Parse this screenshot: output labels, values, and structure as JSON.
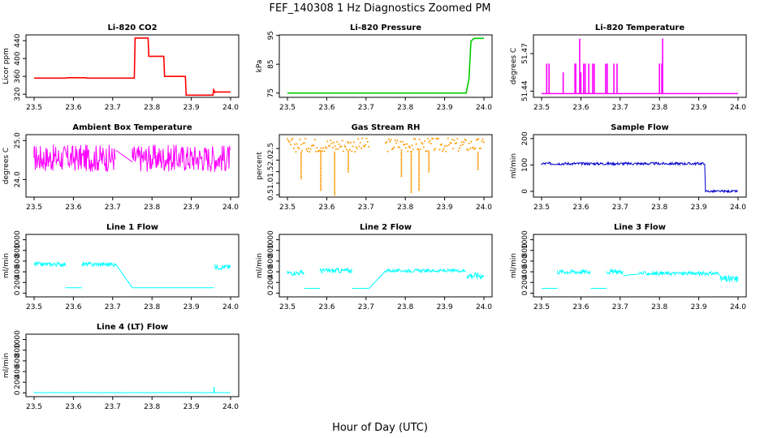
{
  "figure": {
    "title": "FEF_140308  1 Hz Diagnostics Zoomed PM",
    "xlabel": "Hour of Day (UTC)"
  },
  "chart_data": [
    {
      "type": "line",
      "title": "Li-820 CO2",
      "ylabel": "Licor ppm",
      "color": "#ff0000",
      "xlim": [
        23.5,
        24.0
      ],
      "ylim": [
        313,
        453
      ],
      "xticks": [
        "23.5",
        "23.6",
        "23.7",
        "23.8",
        "23.9",
        "24.0"
      ],
      "yticks": [
        {
          "v": 320,
          "label": "320"
        },
        {
          "v": 360,
          "label": "360"
        },
        {
          "v": 400,
          "label": "400"
        },
        {
          "v": 440,
          "label": "440"
        }
      ],
      "series": [
        {
          "name": "CO2",
          "x": [
            23.5,
            23.58,
            23.585,
            23.63,
            23.635,
            23.755,
            23.757,
            23.79,
            23.792,
            23.83,
            23.832,
            23.885,
            23.887,
            23.955,
            23.957,
            23.96,
            23.962,
            24.0
          ],
          "y": [
            356,
            356,
            357,
            357,
            356,
            356,
            446,
            446,
            405,
            405,
            360,
            360,
            318,
            318,
            330,
            324,
            325,
            325
          ]
        }
      ]
    },
    {
      "type": "line",
      "title": "Li-820 Pressure",
      "ylabel": "kPa",
      "color": "#00cc00",
      "xlim": [
        23.5,
        24.0
      ],
      "ylim": [
        73.5,
        95.2
      ],
      "xticks": [
        "23.5",
        "23.6",
        "23.7",
        "23.8",
        "23.9",
        "24.0"
      ],
      "yticks": [
        {
          "v": 75,
          "label": "75"
        },
        {
          "v": 85,
          "label": "85"
        },
        {
          "v": 95,
          "label": "95"
        }
      ],
      "series": [
        {
          "name": "Pressure",
          "x": [
            23.5,
            23.955,
            23.962,
            23.967,
            23.975,
            24.0
          ],
          "y": [
            75.0,
            75.0,
            80,
            93,
            94,
            94
          ]
        }
      ]
    },
    {
      "type": "spike",
      "title": "Li-820 Temperature",
      "ylabel": "degrees C",
      "color": "#ff00ff",
      "xlim": [
        23.5,
        24.0
      ],
      "ylim": [
        51.435,
        51.485
      ],
      "xticks": [
        "23.5",
        "23.6",
        "23.7",
        "23.8",
        "23.9",
        "24.0"
      ],
      "yticks": [
        {
          "v": 51.44,
          "label": "51.44"
        },
        {
          "v": 51.47,
          "label": "51.47"
        }
      ],
      "baseline": 51.438,
      "spikes": [
        {
          "x": 23.513,
          "y": 51.462
        },
        {
          "x": 23.519,
          "y": 51.462
        },
        {
          "x": 23.555,
          "y": 51.455
        },
        {
          "x": 23.585,
          "y": 51.462
        },
        {
          "x": 23.587,
          "y": 51.462
        },
        {
          "x": 23.597,
          "y": 51.482
        },
        {
          "x": 23.6,
          "y": 51.455
        },
        {
          "x": 23.607,
          "y": 51.462
        },
        {
          "x": 23.611,
          "y": 51.462
        },
        {
          "x": 23.62,
          "y": 51.462
        },
        {
          "x": 23.63,
          "y": 51.462
        },
        {
          "x": 23.634,
          "y": 51.462
        },
        {
          "x": 23.663,
          "y": 51.462
        },
        {
          "x": 23.667,
          "y": 51.462
        },
        {
          "x": 23.684,
          "y": 51.462
        },
        {
          "x": 23.692,
          "y": 51.462
        },
        {
          "x": 23.8,
          "y": 51.462
        },
        {
          "x": 23.806,
          "y": 51.462
        },
        {
          "x": 23.808,
          "y": 51.482
        }
      ]
    },
    {
      "type": "noise",
      "title": "Ambient Box Temperature",
      "ylabel": "degrees C",
      "color": "#ff00ff",
      "xlim": [
        23.5,
        24.0
      ],
      "ylim": [
        23.55,
        25.15
      ],
      "xticks": [
        "23.5",
        "23.6",
        "23.7",
        "23.8",
        "23.9",
        "24.0"
      ],
      "yticks": [
        {
          "v": 24.0,
          "label": "24.0"
        },
        {
          "v": 25.0,
          "label": "25.0"
        }
      ],
      "segments": [
        {
          "x": [
            23.5,
            23.708
          ],
          "mid": 24.55,
          "amp": 0.35
        },
        {
          "x": [
            23.75,
            24.0
          ],
          "mid": 24.55,
          "amp": 0.35
        }
      ],
      "gap_line": {
        "x": [
          23.708,
          23.75
        ],
        "y": [
          24.75,
          24.45
        ]
      }
    },
    {
      "type": "noise_points",
      "title": "Gas Stream RH",
      "ylabel": "percent",
      "color": "#ff9900",
      "xlim": [
        23.5,
        24.0
      ],
      "ylim": [
        0.4,
        3.1
      ],
      "xticks": [
        "23.5",
        "23.6",
        "23.7",
        "23.8",
        "23.9",
        "24.0"
      ],
      "yticks": [
        {
          "v": 0.5,
          "label": "0.5"
        },
        {
          "v": 1.0,
          "label": "1.0"
        },
        {
          "v": 1.5,
          "label": "1.5"
        },
        {
          "v": 2.0,
          "label": "2.0"
        },
        {
          "v": 2.5,
          "label": "2.5"
        }
      ],
      "segments": [
        {
          "x": [
            23.5,
            23.708
          ],
          "mid": 2.65,
          "amp": 0.3
        },
        {
          "x": [
            23.75,
            24.0
          ],
          "mid": 2.65,
          "amp": 0.3
        }
      ],
      "dips": [
        {
          "x": 23.535,
          "y": 1.2
        },
        {
          "x": 23.585,
          "y": 0.7
        },
        {
          "x": 23.62,
          "y": 0.5
        },
        {
          "x": 23.655,
          "y": 1.5
        },
        {
          "x": 23.79,
          "y": 1.3
        },
        {
          "x": 23.815,
          "y": 0.6
        },
        {
          "x": 23.835,
          "y": 0.7
        },
        {
          "x": 23.86,
          "y": 1.5
        },
        {
          "x": 23.985,
          "y": 1.6
        }
      ]
    },
    {
      "type": "noise",
      "title": "Sample Flow",
      "ylabel": "ml/min",
      "color": "#0000cc",
      "xlim": [
        23.5,
        24.0
      ],
      "ylim": [
        -22,
        215
      ],
      "xticks": [
        "23.5",
        "23.6",
        "23.7",
        "23.8",
        "23.9",
        "24.0"
      ],
      "yticks": [
        {
          "v": 0,
          "label": "0"
        },
        {
          "v": 100,
          "label": "100"
        },
        {
          "v": 200,
          "label": "200"
        }
      ],
      "segments": [
        {
          "x": [
            23.5,
            23.915
          ],
          "mid": 105,
          "amp": 5
        },
        {
          "x": [
            23.917,
            24.0
          ],
          "mid": 0,
          "amp": 4
        }
      ],
      "gap_line": {
        "x": [
          23.915,
          23.917
        ],
        "y": [
          105,
          0
        ]
      }
    },
    {
      "type": "noise",
      "title": "Line 1 Flow",
      "ylabel": "ml/min",
      "color": "#00ffff",
      "xlim": [
        23.5,
        24.0
      ],
      "ylim": [
        -70,
        1100
      ],
      "xticks": [
        "23.5",
        "23.6",
        "23.7",
        "23.8",
        "23.9",
        "24.0"
      ],
      "yticks": [
        {
          "v": 0,
          "label": "0"
        },
        {
          "v": 200,
          "label": "200"
        },
        {
          "v": 400,
          "label": "400"
        },
        {
          "v": 600,
          "label": "600"
        },
        {
          "v": 800,
          "label": "800"
        },
        {
          "v": 1000,
          "label": "1000"
        }
      ],
      "segments": [
        {
          "x": [
            23.5,
            23.58
          ],
          "mid": 540,
          "amp": 40
        },
        {
          "x": [
            23.58,
            23.622
          ],
          "mid": 100,
          "amp": 0
        },
        {
          "x": [
            23.622,
            23.708
          ],
          "mid": 540,
          "amp": 40
        },
        {
          "x": [
            23.75,
            23.958
          ],
          "mid": 100,
          "amp": 0
        },
        {
          "x": [
            23.96,
            24.0
          ],
          "mid": 490,
          "amp": 50
        }
      ],
      "gap_line": {
        "x": [
          23.708,
          23.75
        ],
        "y": [
          540,
          100
        ]
      }
    },
    {
      "type": "noise",
      "title": "Line 2 Flow",
      "ylabel": "ml/min",
      "color": "#00ffff",
      "xlim": [
        23.5,
        24.0
      ],
      "ylim": [
        -70,
        1100
      ],
      "xticks": [
        "23.5",
        "23.6",
        "23.7",
        "23.8",
        "23.9",
        "24.0"
      ],
      "yticks": [
        {
          "v": 0,
          "label": "0"
        },
        {
          "v": 200,
          "label": "200"
        },
        {
          "v": 400,
          "label": "400"
        },
        {
          "v": 600,
          "label": "600"
        },
        {
          "v": 800,
          "label": "800"
        },
        {
          "v": 1000,
          "label": "1000"
        }
      ],
      "segments": [
        {
          "x": [
            23.5,
            23.543
          ],
          "mid": 380,
          "amp": 45
        },
        {
          "x": [
            23.543,
            23.583
          ],
          "mid": 90,
          "amp": 0
        },
        {
          "x": [
            23.583,
            23.665
          ],
          "mid": 420,
          "amp": 45
        },
        {
          "x": [
            23.665,
            23.708
          ],
          "mid": 90,
          "amp": 0
        },
        {
          "x": [
            23.75,
            23.955
          ],
          "mid": 420,
          "amp": 30
        },
        {
          "x": [
            23.958,
            24.0
          ],
          "mid": 330,
          "amp": 60
        }
      ],
      "gap_line": {
        "x": [
          23.708,
          23.75
        ],
        "y": [
          90,
          420
        ]
      }
    },
    {
      "type": "noise",
      "title": "Line 3 Flow",
      "ylabel": "ml/min",
      "color": "#00ffff",
      "xlim": [
        23.5,
        24.0
      ],
      "ylim": [
        -70,
        1100
      ],
      "xticks": [
        "23.5",
        "23.6",
        "23.7",
        "23.8",
        "23.9",
        "24.0"
      ],
      "yticks": [
        {
          "v": 0,
          "label": "0"
        },
        {
          "v": 200,
          "label": "200"
        },
        {
          "v": 400,
          "label": "400"
        },
        {
          "v": 600,
          "label": "600"
        },
        {
          "v": 800,
          "label": "800"
        },
        {
          "v": 1000,
          "label": "1000"
        }
      ],
      "segments": [
        {
          "x": [
            23.5,
            23.54
          ],
          "mid": 90,
          "amp": 0
        },
        {
          "x": [
            23.54,
            23.625
          ],
          "mid": 400,
          "amp": 45
        },
        {
          "x": [
            23.625,
            23.665
          ],
          "mid": 90,
          "amp": 0
        },
        {
          "x": [
            23.665,
            23.708
          ],
          "mid": 400,
          "amp": 45
        },
        {
          "x": [
            23.75,
            23.955
          ],
          "mid": 370,
          "amp": 35
        },
        {
          "x": [
            23.955,
            24.0
          ],
          "mid": 260,
          "amp": 70
        }
      ],
      "gap_line": {
        "x": [
          23.708,
          23.75
        ],
        "y": [
          330,
          360
        ]
      }
    },
    {
      "type": "noise",
      "title": "Line 4 (LT) Flow",
      "ylabel": "ml/min",
      "color": "#00ffff",
      "xlim": [
        23.5,
        24.0
      ],
      "ylim": [
        -70,
        1100
      ],
      "xticks": [
        "23.5",
        "23.6",
        "23.7",
        "23.8",
        "23.9",
        "24.0"
      ],
      "yticks": [
        {
          "v": 0,
          "label": "0"
        },
        {
          "v": 200,
          "label": "200"
        },
        {
          "v": 400,
          "label": "400"
        },
        {
          "v": 600,
          "label": "600"
        },
        {
          "v": 800,
          "label": "800"
        },
        {
          "v": 1000,
          "label": "1000"
        }
      ],
      "segments": [
        {
          "x": [
            23.5,
            24.0
          ],
          "mid": 5,
          "amp": 3
        }
      ],
      "spikes": [
        {
          "x": 23.958,
          "y": 110
        }
      ]
    }
  ]
}
